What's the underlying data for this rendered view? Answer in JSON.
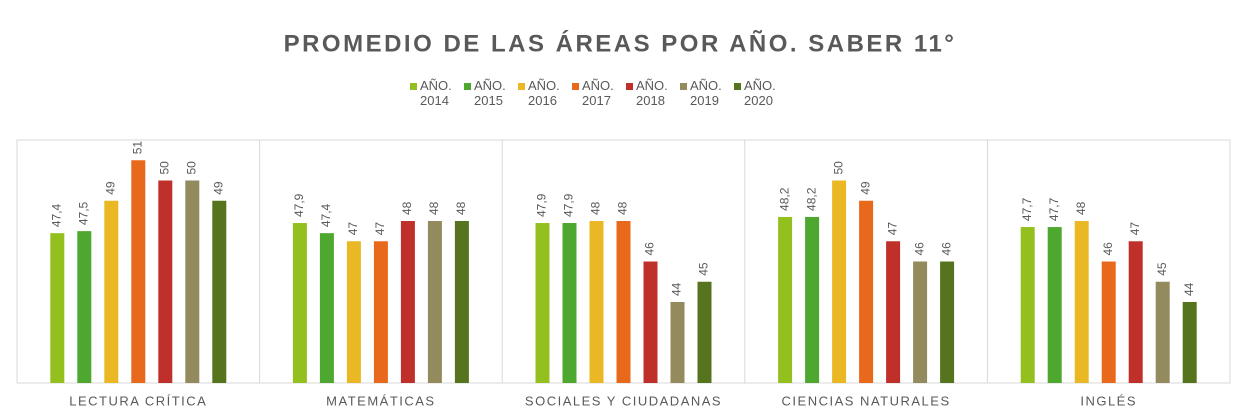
{
  "chart_data": {
    "type": "bar",
    "title": "PROMEDIO DE LAS ÁREAS POR AÑO. SABER 11°",
    "categories": [
      "LECTURA CRÍTICA",
      "MATEMÁTICAS",
      "SOCIALES Y CIUDADANAS",
      "CIENCIAS NATURALES",
      "INGLÉS"
    ],
    "ylim": [
      40,
      52
    ],
    "legend": "top",
    "series": [
      {
        "name": "AÑO. 2014",
        "color": "#93c01f",
        "values": [
          47.4,
          47.9,
          47.9,
          48.2,
          47.7
        ],
        "value_labels": [
          "47,4",
          "47,9",
          "47,9",
          "48,2",
          "47,7"
        ]
      },
      {
        "name": "AÑO. 2015",
        "color": "#4ea72e",
        "values": [
          47.5,
          47.4,
          47.9,
          48.2,
          47.7
        ],
        "value_labels": [
          "47,5",
          "47,4",
          "47,9",
          "48,2",
          "47,7"
        ]
      },
      {
        "name": "AÑO. 2016",
        "color": "#e9b824",
        "values": [
          49,
          47,
          48,
          50,
          48
        ],
        "value_labels": [
          "49",
          "47",
          "48",
          "50",
          "48"
        ]
      },
      {
        "name": "AÑO. 2017",
        "color": "#e8691c",
        "values": [
          51,
          47,
          48,
          49,
          46
        ],
        "value_labels": [
          "51",
          "47",
          "48",
          "49",
          "46"
        ]
      },
      {
        "name": "AÑO. 2018",
        "color": "#c0302a",
        "values": [
          50,
          48,
          46,
          47,
          47
        ],
        "value_labels": [
          "50",
          "48",
          "46",
          "47",
          "47"
        ]
      },
      {
        "name": "AÑO. 2019",
        "color": "#938a5d",
        "values": [
          50,
          48,
          44,
          46,
          45
        ],
        "value_labels": [
          "50",
          "48",
          "44",
          "46",
          "45"
        ]
      },
      {
        "name": "AÑO. 2020",
        "color": "#55741d",
        "values": [
          49,
          48,
          45,
          46,
          44
        ],
        "value_labels": [
          "49",
          "48",
          "45",
          "46",
          "44"
        ]
      }
    ]
  }
}
